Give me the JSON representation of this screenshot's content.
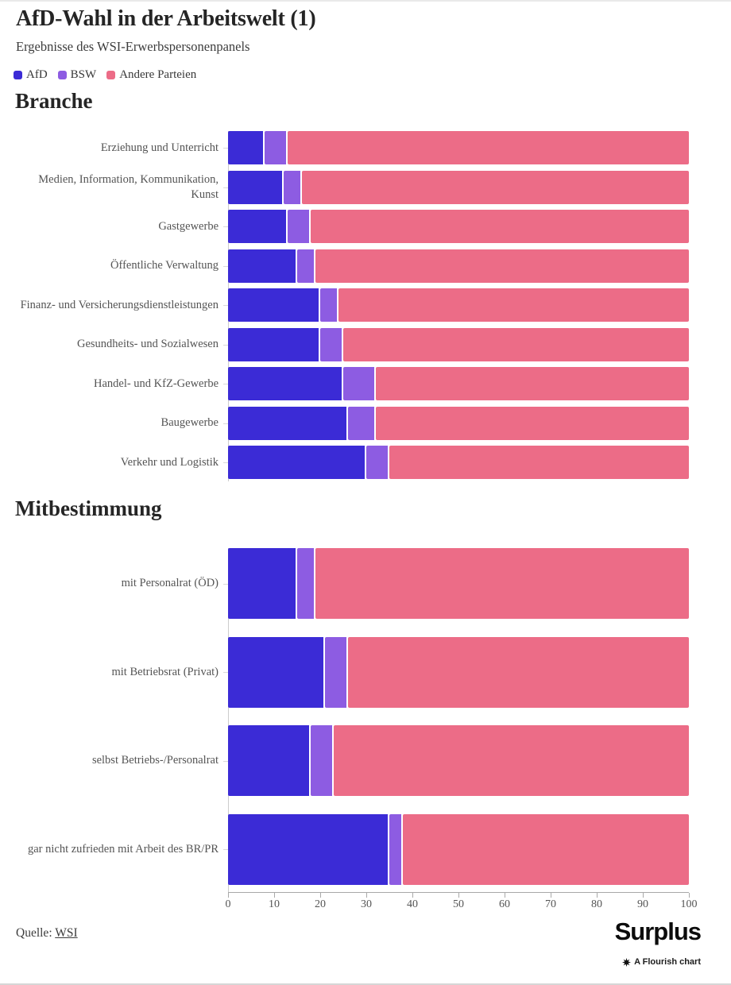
{
  "header": {
    "title": "AfD-Wahl in der Arbeitswelt (1)",
    "subtitle": "Ergebnisse des WSI-Erwerbspersonenpanels"
  },
  "legend": [
    {
      "label": "AfD",
      "color": "#3b2bd6"
    },
    {
      "label": "BSW",
      "color": "#8d5ce2"
    },
    {
      "label": "Andere Parteien",
      "color": "#ec6c87"
    }
  ],
  "chart_data": [
    {
      "type": "bar",
      "stacked": true,
      "orientation": "horizontal",
      "section_title": "Branche",
      "xlim": [
        0,
        100
      ],
      "grid": false,
      "categories": [
        "Erziehung und Unterricht",
        "Medien, Information, Kommunikation, Kunst",
        "Gastgewerbe",
        "Öffentliche Verwaltung",
        "Finanz- und Versicherungsdienstleistungen",
        "Gesundheits- und Sozialwesen",
        "Handel- und KfZ-Gewerbe",
        "Baugewerbe",
        "Verkehr und Logistik"
      ],
      "series": [
        {
          "name": "AfD",
          "values": [
            8,
            12,
            13,
            15,
            20,
            20,
            25,
            26,
            30
          ]
        },
        {
          "name": "BSW",
          "values": [
            5,
            4,
            5,
            4,
            4,
            5,
            7,
            6,
            5
          ]
        },
        {
          "name": "Andere Parteien",
          "values": [
            87,
            84,
            82,
            81,
            76,
            75,
            68,
            68,
            65
          ]
        }
      ]
    },
    {
      "type": "bar",
      "stacked": true,
      "orientation": "horizontal",
      "section_title": "Mitbestimmung",
      "xlim": [
        0,
        100
      ],
      "grid": false,
      "x_ticks": [
        0,
        10,
        20,
        30,
        40,
        50,
        60,
        70,
        80,
        90,
        100
      ],
      "categories": [
        "mit Personalrat (ÖD)",
        "mit Betriebsrat (Privat)",
        "selbst Betriebs-/Personalrat",
        "gar nicht zufrieden mit Arbeit des BR/PR"
      ],
      "series": [
        {
          "name": "AfD",
          "values": [
            15,
            21,
            18,
            35
          ]
        },
        {
          "name": "BSW",
          "values": [
            4,
            5,
            5,
            3
          ]
        },
        {
          "name": "Andere Parteien",
          "values": [
            81,
            74,
            77,
            62
          ]
        }
      ]
    }
  ],
  "footer": {
    "source_label": "Quelle:",
    "source_link": "WSI",
    "brand": "Surplus",
    "attribution": "A Flourish chart"
  }
}
